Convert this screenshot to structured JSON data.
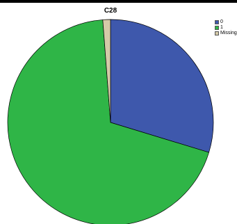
{
  "chart_data": {
    "type": "pie",
    "title": "C28",
    "legend_position": "top-right",
    "slices": [
      {
        "label": "0",
        "value": 29.7,
        "color": "#3e58ac"
      },
      {
        "label": "1",
        "value": 69.1,
        "color": "#2fb547"
      },
      {
        "label": "Missing",
        "value": 1.2,
        "color": "#d4caa8"
      }
    ]
  }
}
